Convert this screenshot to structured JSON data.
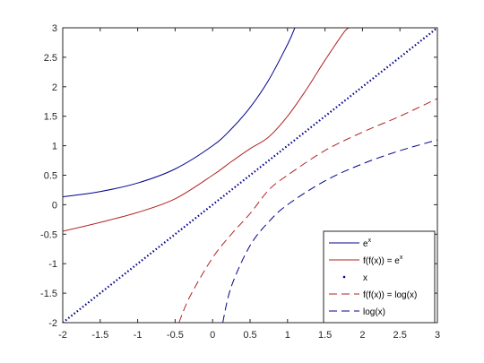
{
  "chart_data": {
    "type": "line",
    "xlim": [
      -2,
      3
    ],
    "ylim": [
      -2,
      3
    ],
    "xticks": [
      -2,
      -1.5,
      -1,
      -0.5,
      0,
      0.5,
      1,
      1.5,
      2,
      2.5,
      3
    ],
    "yticks": [
      -2,
      -1.5,
      -1,
      -0.5,
      0,
      0.5,
      1,
      1.5,
      2,
      2.5,
      3
    ],
    "xtick_labels": [
      "-2",
      "-1.5",
      "-1",
      "-0.5",
      "0",
      "0.5",
      "1",
      "1.5",
      "2",
      "2.5",
      "3"
    ],
    "ytick_labels": [
      "-2",
      "-1.5",
      "-1",
      "-0.5",
      "0",
      "0.5",
      "1",
      "1.5",
      "2",
      "2.5",
      "3"
    ],
    "grid": false,
    "legend_position": "bottom-right",
    "series": [
      {
        "name_base": "e",
        "name_sup": "x",
        "color": "#00008B",
        "style": "solid",
        "x": [
          -2,
          -1.5,
          -1,
          -0.5,
          0,
          0.25,
          0.5,
          0.75,
          1,
          1.0986
        ],
        "y": [
          0.135,
          0.223,
          0.368,
          0.607,
          1.0,
          1.284,
          1.649,
          2.117,
          2.718,
          3.0
        ]
      },
      {
        "name_base": "f(f(x)) = e",
        "name_sup": "x",
        "color": "#B22222",
        "style": "solid",
        "x": [
          -2,
          -1.5,
          -1,
          -0.5,
          0,
          0.25,
          0.5,
          0.75,
          1,
          1.25,
          1.5,
          1.75,
          1.82
        ],
        "y": [
          -0.45,
          -0.3,
          -0.13,
          0.1,
          0.5,
          0.73,
          0.95,
          1.15,
          1.5,
          1.95,
          2.45,
          2.92,
          3.0
        ]
      },
      {
        "name": "x",
        "color": "#00008B",
        "style": "dotted",
        "x": [
          -2,
          3
        ],
        "y": [
          -2,
          3
        ]
      },
      {
        "name": "f(f(x)) = log(x)",
        "color": "#B22222",
        "style": "dashed",
        "x": [
          -0.45,
          -0.3,
          0,
          0.25,
          0.5,
          0.75,
          1,
          1.5,
          2,
          2.5,
          3
        ],
        "y": [
          -2.0,
          -1.55,
          -0.9,
          -0.5,
          -0.15,
          0.25,
          0.5,
          0.92,
          1.23,
          1.5,
          1.8
        ]
      },
      {
        "name": "log(x)",
        "color": "#00008B",
        "style": "dashed",
        "x": [
          0.135,
          0.25,
          0.5,
          0.75,
          1,
          1.5,
          2,
          2.5,
          3
        ],
        "y": [
          -2.0,
          -1.386,
          -0.693,
          -0.288,
          0.0,
          0.405,
          0.693,
          0.916,
          1.099
        ]
      }
    ]
  }
}
